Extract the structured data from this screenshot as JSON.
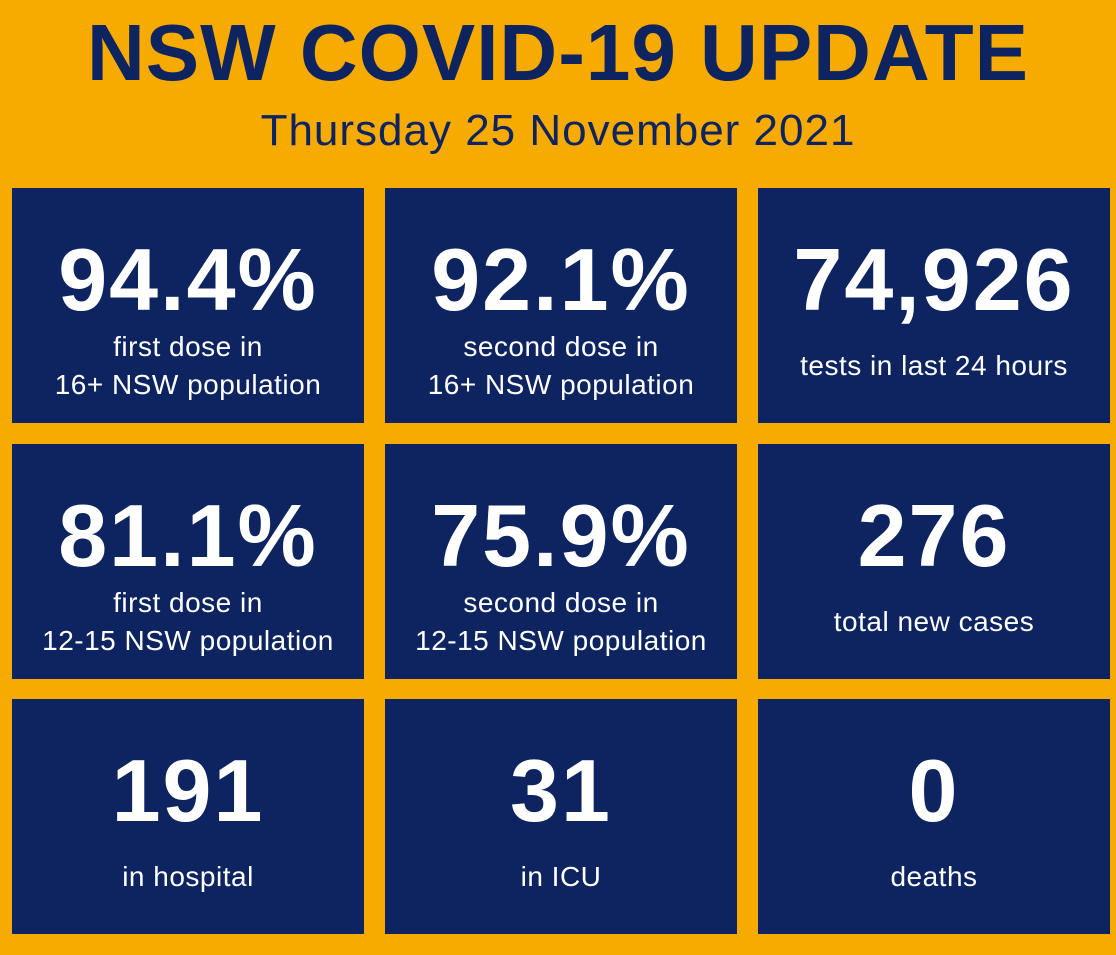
{
  "header": {
    "title": "NSW COVID-19 UPDATE",
    "date": "Thursday 25 November 2021"
  },
  "tiles": [
    {
      "value": "94.4%",
      "label": [
        "first dose in",
        "16+ NSW population"
      ]
    },
    {
      "value": "92.1%",
      "label": [
        "second dose in",
        "16+ NSW population"
      ]
    },
    {
      "value": "74,926",
      "label": [
        "tests in last 24 hours"
      ]
    },
    {
      "value": "81.1%",
      "label": [
        "first dose in",
        "12-15 NSW population"
      ]
    },
    {
      "value": "75.9%",
      "label": [
        "second dose in",
        "12-15 NSW population"
      ]
    },
    {
      "value": "276",
      "label": [
        "total new cases"
      ]
    },
    {
      "value": "191",
      "label": [
        "in hospital"
      ]
    },
    {
      "value": "31",
      "label": [
        "in ICU"
      ]
    },
    {
      "value": "0",
      "label": [
        "deaths"
      ]
    }
  ]
}
